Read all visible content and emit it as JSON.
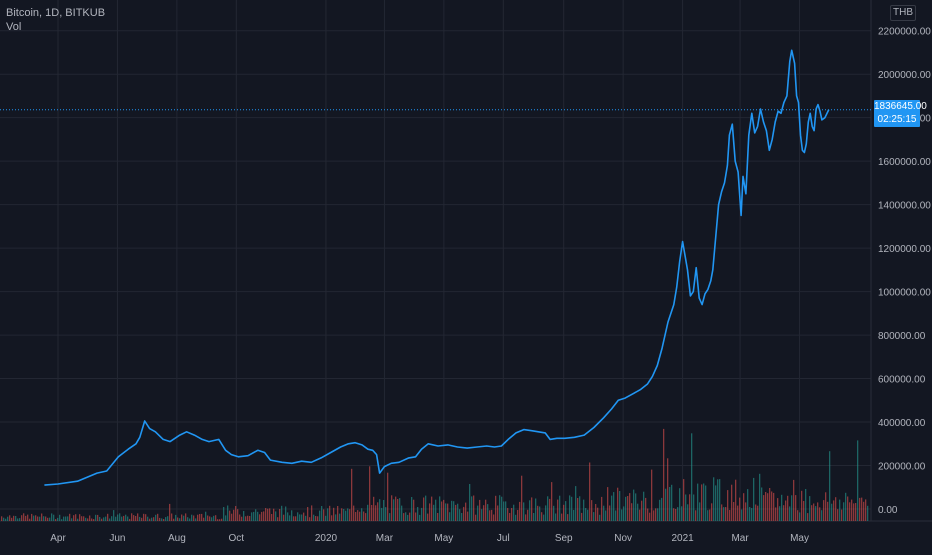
{
  "legend": {
    "symbol": "Bitcoin, 1D, BITKUB",
    "volume_label": "Vol"
  },
  "currency": "THB",
  "last_price": {
    "value": "1836645.00",
    "countdown": "02:25:15"
  },
  "colors": {
    "background": "#131722",
    "grid": "#232733",
    "price_line": "#2196f3",
    "vol_up": "#26a69a",
    "vol_down": "#ef5350",
    "axis_text": "#b2b5be"
  },
  "chart_data": {
    "type": "line",
    "title": "Bitcoin, 1D, BITKUB",
    "xlabel": "",
    "ylabel": "",
    "ylim": [
      -20000,
      2250000
    ],
    "grid": true,
    "y_ticks": [
      "2200000.00",
      "2000000.00",
      "1800000.00",
      "1600000.00",
      "1400000.00",
      "1200000.00",
      "1000000.00",
      "800000.00",
      "600000.00",
      "400000.00",
      "200000.00",
      "0.00"
    ],
    "y_tick_values": [
      2200000,
      2000000,
      1800000,
      1600000,
      1400000,
      1200000,
      1000000,
      800000,
      600000,
      400000,
      200000,
      0
    ],
    "x_ticks": [
      "Apr",
      "Jun",
      "Aug",
      "Oct",
      "2020",
      "Mar",
      "May",
      "Jul",
      "Sep",
      "Nov",
      "2021",
      "Mar",
      "May"
    ],
    "x_tick_days": [
      0,
      61,
      122,
      183,
      275,
      335,
      396,
      457,
      519,
      580,
      641,
      700,
      761
    ],
    "last_value": 1836645,
    "series": [
      {
        "values": [
          [
            -14,
            110000
          ],
          [
            0,
            115000
          ],
          [
            20,
            128000
          ],
          [
            40,
            165000
          ],
          [
            50,
            175000
          ],
          [
            62,
            240000
          ],
          [
            72,
            275000
          ],
          [
            80,
            300000
          ],
          [
            84,
            330000
          ],
          [
            89,
            405000
          ],
          [
            94,
            370000
          ],
          [
            100,
            355000
          ],
          [
            108,
            320000
          ],
          [
            115,
            310000
          ],
          [
            125,
            340000
          ],
          [
            132,
            355000
          ],
          [
            140,
            340000
          ],
          [
            148,
            320000
          ],
          [
            155,
            310000
          ],
          [
            165,
            320000
          ],
          [
            172,
            270000
          ],
          [
            178,
            250000
          ],
          [
            185,
            240000
          ],
          [
            195,
            245000
          ],
          [
            205,
            270000
          ],
          [
            212,
            260000
          ],
          [
            218,
            225000
          ],
          [
            230,
            215000
          ],
          [
            240,
            210000
          ],
          [
            250,
            220000
          ],
          [
            260,
            215000
          ],
          [
            270,
            235000
          ],
          [
            280,
            260000
          ],
          [
            290,
            285000
          ],
          [
            298,
            300000
          ],
          [
            305,
            305000
          ],
          [
            312,
            295000
          ],
          [
            318,
            275000
          ],
          [
            323,
            270000
          ],
          [
            327,
            250000
          ],
          [
            330,
            165000
          ],
          [
            335,
            195000
          ],
          [
            342,
            210000
          ],
          [
            350,
            215000
          ],
          [
            360,
            235000
          ],
          [
            367,
            240000
          ],
          [
            373,
            275000
          ],
          [
            380,
            300000
          ],
          [
            390,
            290000
          ],
          [
            400,
            295000
          ],
          [
            410,
            285000
          ],
          [
            420,
            280000
          ],
          [
            430,
            285000
          ],
          [
            440,
            290000
          ],
          [
            448,
            285000
          ],
          [
            455,
            290000
          ],
          [
            462,
            320000
          ],
          [
            470,
            350000
          ],
          [
            478,
            365000
          ],
          [
            486,
            360000
          ],
          [
            493,
            355000
          ],
          [
            500,
            350000
          ],
          [
            505,
            320000
          ],
          [
            512,
            325000
          ],
          [
            520,
            325000
          ],
          [
            530,
            330000
          ],
          [
            540,
            340000
          ],
          [
            550,
            375000
          ],
          [
            560,
            420000
          ],
          [
            568,
            460000
          ],
          [
            575,
            500000
          ],
          [
            582,
            510000
          ],
          [
            590,
            530000
          ],
          [
            598,
            550000
          ],
          [
            605,
            575000
          ],
          [
            610,
            610000
          ],
          [
            615,
            660000
          ],
          [
            620,
            740000
          ],
          [
            626,
            860000
          ],
          [
            632,
            940000
          ],
          [
            635,
            1020000
          ],
          [
            638,
            1140000
          ],
          [
            641,
            1230000
          ],
          [
            643,
            1180000
          ],
          [
            646,
            1100000
          ],
          [
            649,
            980000
          ],
          [
            652,
            1000000
          ],
          [
            655,
            1110000
          ],
          [
            658,
            970000
          ],
          [
            661,
            940000
          ],
          [
            664,
            990000
          ],
          [
            667,
            1010000
          ],
          [
            670,
            1050000
          ],
          [
            672,
            1100000
          ],
          [
            675,
            1250000
          ],
          [
            678,
            1400000
          ],
          [
            681,
            1460000
          ],
          [
            684,
            1500000
          ],
          [
            687,
            1580000
          ],
          [
            689,
            1720000
          ],
          [
            692,
            1770000
          ],
          [
            695,
            1600000
          ],
          [
            698,
            1550000
          ],
          [
            701,
            1350000
          ],
          [
            703,
            1530000
          ],
          [
            706,
            1450000
          ],
          [
            709,
            1720000
          ],
          [
            712,
            1820000
          ],
          [
            715,
            1730000
          ],
          [
            718,
            1760000
          ],
          [
            721,
            1840000
          ],
          [
            724,
            1780000
          ],
          [
            727,
            1740000
          ],
          [
            730,
            1650000
          ],
          [
            733,
            1700000
          ],
          [
            736,
            1780000
          ],
          [
            739,
            1830000
          ],
          [
            742,
            1820000
          ],
          [
            745,
            1870000
          ],
          [
            748,
            1900000
          ],
          [
            751,
            2060000
          ],
          [
            753,
            2110000
          ],
          [
            756,
            2050000
          ],
          [
            758,
            1900000
          ],
          [
            760,
            1870000
          ],
          [
            762,
            1720000
          ],
          [
            764,
            1650000
          ],
          [
            766,
            1640000
          ],
          [
            768,
            1680000
          ],
          [
            770,
            1780000
          ],
          [
            772,
            1820000
          ],
          [
            774,
            1760000
          ],
          [
            776,
            1740000
          ],
          [
            778,
            1840000
          ],
          [
            780,
            1860000
          ],
          [
            782,
            1830000
          ],
          [
            784,
            1790000
          ],
          [
            787,
            1800000
          ],
          [
            791,
            1837000
          ]
        ]
      }
    ]
  }
}
